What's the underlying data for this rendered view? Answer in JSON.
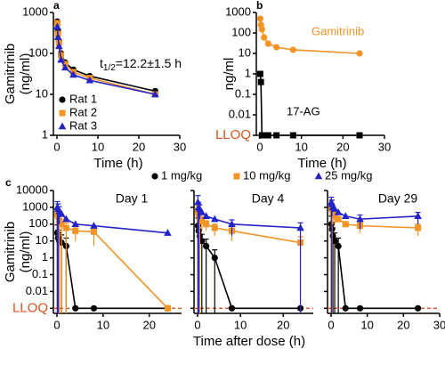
{
  "chart_data": [
    {
      "type": "line",
      "panel": "a",
      "ylabel": [
        "Gamitrinib",
        "(ng/ml)"
      ],
      "xlabel": "Time (h)",
      "annotation_parts": [
        "t",
        "1/2",
        "=12.2±1.5 h"
      ],
      "log_y": true,
      "legend": "lower left",
      "x": [
        0.083,
        0.25,
        0.5,
        1,
        2,
        4,
        8,
        24
      ],
      "xlim": [
        0,
        30
      ],
      "xticks": [
        0,
        10,
        20,
        30
      ],
      "ylim": [
        1,
        1000
      ],
      "yticks": [
        1,
        10,
        100,
        1000
      ],
      "series": [
        {
          "name": "Rat 1",
          "color": "#000000",
          "marker": "circle",
          "values": [
            600,
            350,
            200,
            100,
            60,
            40,
            28,
            12
          ]
        },
        {
          "name": "Rat 2",
          "color": "#f39425",
          "marker": "square",
          "values": [
            550,
            300,
            180,
            90,
            55,
            35,
            25,
            10
          ]
        },
        {
          "name": "Rat 3",
          "color": "#2323c8",
          "marker": "triangle",
          "values": [
            450,
            250,
            150,
            70,
            45,
            30,
            22,
            10
          ]
        }
      ]
    },
    {
      "type": "line",
      "panel": "b",
      "ylabel": [
        "ng/ml"
      ],
      "xlabel": "Time (h)",
      "log_y": true,
      "legend": "inline",
      "ref_color": "#d9531e",
      "ref_line": false,
      "x": [
        0.083,
        0.25,
        0.5,
        1,
        2,
        4,
        8,
        24
      ],
      "xlim": [
        0,
        30
      ],
      "xticks": [
        0,
        10,
        20,
        30
      ],
      "ylim": [
        0.001,
        1000
      ],
      "yticks": [
        {
          "value": 0.001,
          "label": "LLOQ"
        },
        0.01,
        0.1,
        1,
        10,
        100,
        1000
      ],
      "series": [
        {
          "name": "Gamitrinib",
          "color": "#f39425",
          "marker": "circle",
          "values": [
            500,
            250,
            150,
            60,
            30,
            20,
            15,
            10
          ]
        },
        {
          "name": "17-AG",
          "color": "#000000",
          "marker": "square",
          "values": [
            1,
            0.4,
            0.001,
            0.001,
            0.001,
            0.001,
            0.001,
            0.001
          ]
        }
      ]
    },
    {
      "type": "line",
      "panel": "c",
      "title": "Day 1",
      "ylabel": [
        "Gamitrinib",
        "(ng/ml)"
      ],
      "xlabel": "Time after dose (h)",
      "log_y": true,
      "legend": "above",
      "ref_color": "#d9531e",
      "ref_line": true,
      "x": [
        0.083,
        0.25,
        0.5,
        1,
        2,
        4,
        8,
        24
      ],
      "xlim": [
        0,
        27
      ],
      "xticks": [
        0,
        10,
        20
      ],
      "ylim": [
        0.0005,
        10000
      ],
      "yticks": [
        {
          "value": 0.001,
          "label": "LLOQ"
        },
        0.01,
        0.1,
        1,
        10,
        100,
        1000,
        10000
      ],
      "series": [
        {
          "name": "1 mg/kg",
          "color": "#000000",
          "marker": "circle",
          "values": [
            30,
            15,
            10,
            8,
            5,
            0.001,
            0.001,
            0.001
          ],
          "errors": [
            60,
            30,
            20,
            15,
            10,
            null,
            null,
            null
          ]
        },
        {
          "name": "10 mg/kg",
          "color": "#f39425",
          "marker": "square",
          "values": [
            400,
            300,
            150,
            100,
            60,
            40,
            35,
            0.001
          ],
          "errors": [
            500,
            300,
            200,
            100,
            60,
            30,
            30,
            null
          ]
        },
        {
          "name": "25 mg/kg",
          "color": "#2323c8",
          "marker": "triangle",
          "values": [
            1000,
            800,
            600,
            400,
            200,
            100,
            80,
            30
          ],
          "errors": [
            1200,
            800,
            500,
            null,
            null,
            null,
            null,
            null
          ]
        }
      ]
    },
    {
      "type": "line",
      "title": "Day 4",
      "log_y": true,
      "x": [
        0.083,
        0.25,
        0.5,
        1,
        2,
        4,
        8,
        24
      ],
      "xlim": [
        0,
        27
      ],
      "xticks": [
        0,
        10,
        20
      ],
      "series": [
        {
          "color": "#000000",
          "marker": "circle",
          "values": [
            80,
            40,
            20,
            10,
            5,
            1,
            0.001,
            0.001
          ],
          "errors": [
            150,
            60,
            30,
            15,
            8,
            2,
            null,
            null
          ]
        },
        {
          "color": "#f39425",
          "marker": "square",
          "values": [
            600,
            400,
            200,
            150,
            100,
            60,
            40,
            8
          ],
          "errors": [
            600,
            400,
            200,
            100,
            60,
            40,
            30,
            10
          ]
        },
        {
          "color": "#2323c8",
          "marker": "triangle",
          "values": [
            2000,
            1000,
            800,
            500,
            300,
            200,
            100,
            60
          ],
          "errors": [
            3000,
            1000,
            600,
            null,
            null,
            null,
            80,
            60
          ]
        }
      ]
    },
    {
      "type": "line",
      "title": "Day 29",
      "log_y": true,
      "x": [
        0.083,
        0.25,
        0.5,
        1,
        2,
        4,
        8,
        24
      ],
      "xlim": [
        0,
        30
      ],
      "xticks": [
        0,
        10,
        20,
        30
      ],
      "series": [
        {
          "color": "#000000",
          "marker": "circle",
          "values": [
            100,
            50,
            20,
            10,
            5,
            0.001,
            0.001,
            0.001
          ],
          "errors": [
            200,
            80,
            40,
            20,
            10,
            null,
            null,
            null
          ]
        },
        {
          "color": "#f39425",
          "marker": "square",
          "values": [
            1000,
            800,
            500,
            300,
            200,
            100,
            80,
            60
          ],
          "errors": [
            1500,
            800,
            400,
            200,
            null,
            null,
            50,
            40
          ]
        },
        {
          "color": "#2323c8",
          "marker": "triangle",
          "values": [
            2000,
            1500,
            1000,
            800,
            500,
            300,
            200,
            300
          ],
          "errors": [
            2000,
            1200,
            null,
            null,
            null,
            null,
            150,
            200
          ]
        }
      ]
    }
  ]
}
